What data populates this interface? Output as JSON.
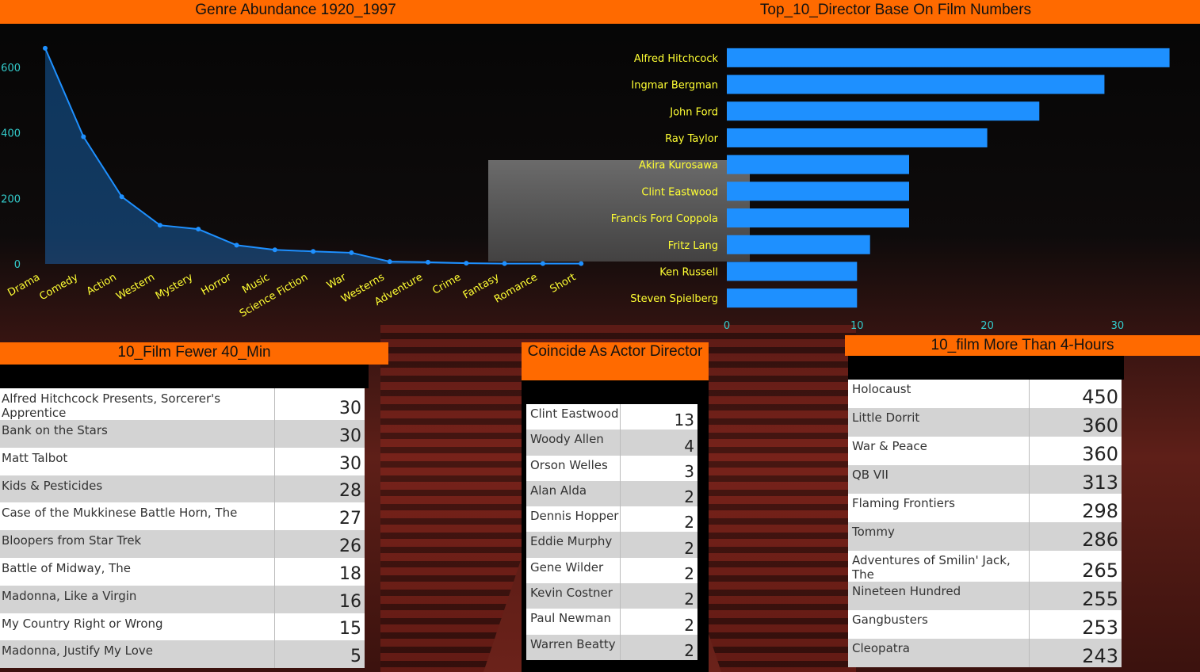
{
  "headers": {
    "genre": "Genre Abundance 1920_1997",
    "directors": "Top_10_Director Base On Film Numbers",
    "short_films": "10_Film Fewer 40_Min",
    "actor_director": "Coincide As Actor Director",
    "long_films": "10_film More Than 4-Hours"
  },
  "colors": {
    "header": "#ff6a00",
    "series": "#1e90ff",
    "label": "#ffff33",
    "tick": "#33cccc"
  },
  "chart_data": [
    {
      "type": "area",
      "title": "Genre Abundance 1920_1997",
      "categories": [
        "Drama",
        "Comedy",
        "Action",
        "Western",
        "Mystery",
        "Horror",
        "Music",
        "Science Fiction",
        "War",
        "Westerns",
        "Adventure",
        "Crime",
        "Fantasy",
        "Romance",
        "Short"
      ],
      "values": [
        658,
        388,
        205,
        118,
        106,
        57,
        43,
        38,
        34,
        7,
        5,
        2,
        1,
        1,
        1
      ],
      "ylim": [
        0,
        660
      ],
      "yticks": [
        0,
        200,
        400,
        600
      ],
      "grid": false
    },
    {
      "type": "bar",
      "orientation": "horizontal",
      "title": "Top_10_Director Base On Film Numbers",
      "categories": [
        "Alfred Hitchcock",
        "Ingmar Bergman",
        "John Ford",
        "Ray Taylor",
        "Akira Kurosawa",
        "Clint Eastwood",
        "Francis Ford Coppola",
        "Fritz Lang",
        "Ken Russell",
        "Steven Spielberg"
      ],
      "values": [
        34,
        29,
        24,
        20,
        14,
        14,
        14,
        11,
        10,
        10
      ],
      "xlim": [
        0,
        35
      ],
      "xticks": [
        0,
        10,
        20,
        30
      ],
      "grid": false
    },
    {
      "type": "table",
      "title": "10_Film Fewer 40_Min",
      "rows": [
        {
          "name": "Alfred Hitchcock Presents, Sorcerer's Apprentice",
          "value": "30"
        },
        {
          "name": "Bank on the Stars",
          "value": "30"
        },
        {
          "name": "Matt Talbot",
          "value": "30"
        },
        {
          "name": "Kids & Pesticides",
          "value": "28"
        },
        {
          "name": "Case of the Mukkinese Battle Horn, The",
          "value": "27"
        },
        {
          "name": "Bloopers from Star Trek",
          "value": "26"
        },
        {
          "name": "Battle of Midway, The",
          "value": "18"
        },
        {
          "name": "Madonna, Like a Virgin",
          "value": "16"
        },
        {
          "name": "My Country Right or Wrong",
          "value": "15"
        },
        {
          "name": "Madonna, Justify My Love",
          "value": "5"
        }
      ]
    },
    {
      "type": "table",
      "title": "Coincide As Actor Director",
      "rows": [
        {
          "name": "Clint Eastwood",
          "value": "13"
        },
        {
          "name": "Woody Allen",
          "value": "4"
        },
        {
          "name": "Orson Welles",
          "value": "3"
        },
        {
          "name": "Alan Alda",
          "value": "2"
        },
        {
          "name": "Dennis Hopper",
          "value": "2"
        },
        {
          "name": "Eddie Murphy",
          "value": "2"
        },
        {
          "name": "Gene Wilder",
          "value": "2"
        },
        {
          "name": "Kevin Costner",
          "value": "2"
        },
        {
          "name": "Paul Newman",
          "value": "2"
        },
        {
          "name": "Warren Beatty",
          "value": "2"
        }
      ]
    },
    {
      "type": "table",
      "title": "10_film More Than 4-Hours",
      "rows": [
        {
          "name": "Holocaust",
          "value": "450"
        },
        {
          "name": "Little Dorrit",
          "value": "360"
        },
        {
          "name": "War & Peace",
          "value": "360"
        },
        {
          "name": "QB VII",
          "value": "313"
        },
        {
          "name": "Flaming Frontiers",
          "value": "298"
        },
        {
          "name": "Tommy",
          "value": "286"
        },
        {
          "name": "Adventures of Smilin' Jack, The",
          "value": "265"
        },
        {
          "name": "Nineteen Hundred",
          "value": "255"
        },
        {
          "name": "Gangbusters",
          "value": "253"
        },
        {
          "name": "Cleopatra",
          "value": "243"
        }
      ]
    }
  ]
}
